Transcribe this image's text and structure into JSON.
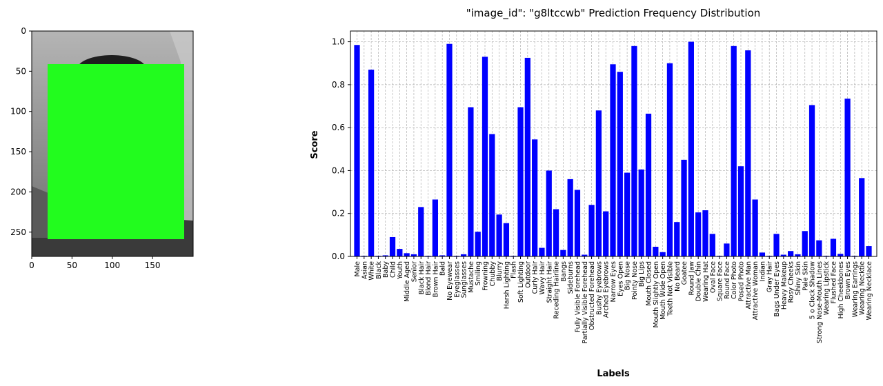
{
  "image_panel": {
    "x_ticks": [
      "0",
      "50",
      "100",
      "150"
    ],
    "y_ticks": [
      "0",
      "50",
      "100",
      "150",
      "200",
      "250"
    ],
    "photo_colors": {
      "sky": "#9c9c9c",
      "ground": "#3a3a3a",
      "mask": "#22fc1e"
    }
  },
  "chart_data": {
    "type": "bar",
    "title": "\"image_id\": \"g8ltccwb\" Prediction Frequency Distribution",
    "xlabel": "Labels",
    "ylabel": "Score",
    "ylim": [
      0,
      1.05
    ],
    "yticks": [
      "0.0",
      "0.2",
      "0.4",
      "0.6",
      "0.8",
      "1.0"
    ],
    "grid": true,
    "bar_color": "#0000ff",
    "categories": [
      "Male",
      "Asian",
      "White",
      "Black",
      "Baby",
      "Child",
      "Youth",
      "Middle Aged",
      "Senior",
      "Black Hair",
      "Blond Hair",
      "Brown Hair",
      "Bald",
      "No Eyewear",
      "Eyeglasses",
      "Sunglasses",
      "Mustache",
      "Smiling",
      "Frowning",
      "Chubby",
      "Blurry",
      "Harsh Lighting",
      "Flash",
      "Soft Lighting",
      "Outdoor",
      "Curly Hair",
      "Wavy Hair",
      "Straight Hair",
      "Receding Hairline",
      "Bangs",
      "Sideburns",
      "Fully Visible Forehead",
      "Partially Visible Forehead",
      "Obstructed Forehead",
      "Bushy Eyebrows",
      "Arched Eyebrows",
      "Narrow Eyes",
      "Eyes Open",
      "Big Nose",
      "Pointy Nose",
      "Big Lips",
      "Mouth Closed",
      "Mouth Slightly Open",
      "Mouth Wide Open",
      "Teeth Not Visible",
      "No Beard",
      "Goatee",
      "Round Jaw",
      "Double Chin",
      "Wearing Hat",
      "Oval Face",
      "Square Face",
      "Round Face",
      "Color Photo",
      "Posed Photo",
      "Attractive Man",
      "Attractive Woman",
      "Indian",
      "Gray Hair",
      "Bags Under Eyes",
      "Heavy Makeup",
      "Rosy Cheeks",
      "Shiny Skin",
      "Pale Skin",
      "5 o Clock Shadow",
      "Strong Nose-Mouth Lines",
      "Wearing Lipstick",
      "Flushed Face",
      "High Cheekbones",
      "Brown Eyes",
      "Wearing Earrings",
      "Wearing Necktie",
      "Wearing Necklace"
    ],
    "values": [
      0.985,
      0.003,
      0.87,
      0.003,
      0.005,
      0.09,
      0.035,
      0.015,
      0.01,
      0.23,
      0.003,
      0.265,
      0.005,
      0.99,
      0.003,
      0.01,
      0.695,
      0.115,
      0.93,
      0.57,
      0.195,
      0.155,
      0.003,
      0.695,
      0.925,
      0.545,
      0.04,
      0.4,
      0.22,
      0.03,
      0.36,
      0.31,
      0.008,
      0.24,
      0.68,
      0.21,
      0.895,
      0.86,
      0.39,
      0.98,
      0.405,
      0.665,
      0.045,
      0.02,
      0.9,
      0.16,
      0.45,
      1.0,
      0.205,
      0.215,
      0.105,
      0.003,
      0.06,
      0.98,
      0.42,
      0.96,
      0.265,
      0.018,
      0.003,
      0.105,
      0.008,
      0.025,
      0.01,
      0.118,
      0.705,
      0.075,
      0.003,
      0.082,
      0.012,
      0.735,
      0.003,
      0.365,
      0.048
    ]
  }
}
